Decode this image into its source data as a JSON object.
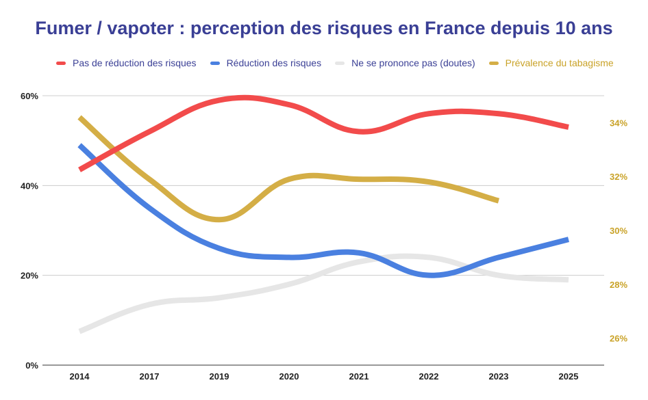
{
  "chart_data": {
    "type": "line",
    "title": "Fumer / vapoter : perception des risques en France depuis 10 ans",
    "categories": [
      "2014",
      "2017",
      "2019",
      "2020",
      "2021",
      "2022",
      "2023",
      "2025"
    ],
    "y_left": {
      "ticks": [
        "0%",
        "20%",
        "40%",
        "60%"
      ],
      "range": [
        0,
        60
      ]
    },
    "y_right": {
      "ticks": [
        "26%",
        "28%",
        "30%",
        "32%",
        "34%"
      ],
      "range": [
        25,
        35
      ]
    },
    "series": [
      {
        "name": "Pas de réduction des risques",
        "axis": "left",
        "color": "#f24b4b",
        "values": [
          43.5,
          52,
          59,
          58,
          52,
          56,
          56,
          53
        ]
      },
      {
        "name": "Réduction des risques",
        "axis": "left",
        "color": "#4a80e0",
        "values": [
          49,
          35,
          26,
          24,
          25,
          20,
          24,
          28
        ]
      },
      {
        "name": "Ne se prononce pas (doutes)",
        "axis": "left",
        "color": "#e6e6e6",
        "values": [
          7.5,
          13.5,
          15,
          18,
          23,
          24,
          20,
          19
        ]
      },
      {
        "name": "Prévalence du tabagisme",
        "axis": "right",
        "color": "#d4ae46",
        "values": [
          34.2,
          31.9,
          30.4,
          31.9,
          31.9,
          31.8,
          31.1,
          null
        ]
      }
    ]
  },
  "colors": {
    "title": "#3a3f95",
    "axis_text": "#222222",
    "right_axis_text": "#c9a227",
    "legend_text": "#3a3f95",
    "gridline": "#cccccc"
  }
}
